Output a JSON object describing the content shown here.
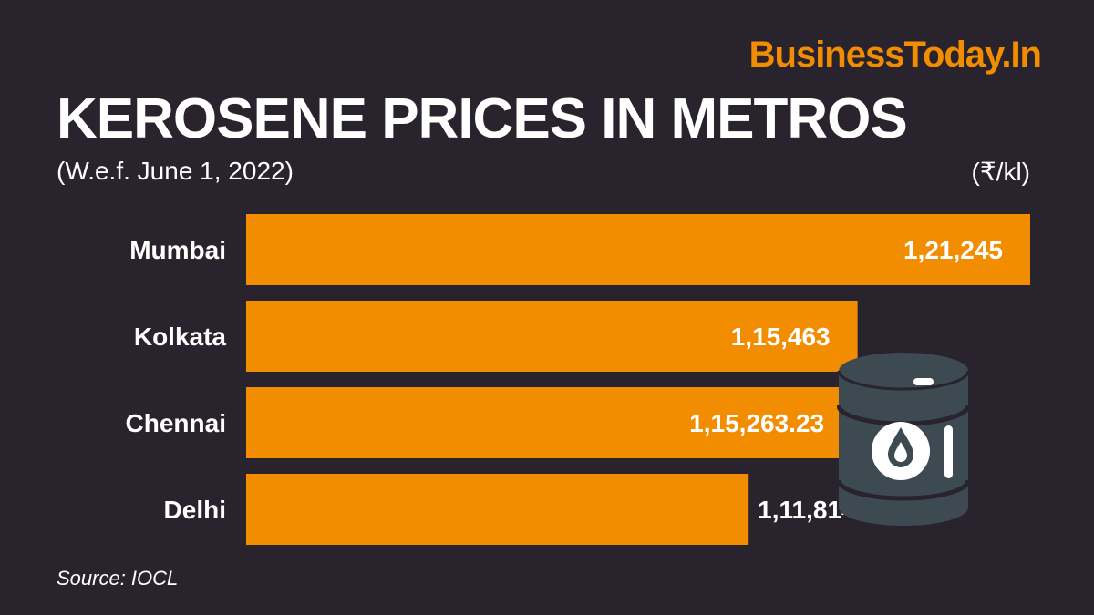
{
  "brand": "BusinessToday.In",
  "source": "Source: IOCL",
  "colors": {
    "background": "#29232d",
    "bar": "#f28c00",
    "text": "#ffffff",
    "brand": "#f28c00",
    "barrel": "#3d4a52"
  },
  "icons": {
    "decoration": "oil-barrel-icon"
  },
  "chart_data": {
    "type": "bar",
    "orientation": "horizontal",
    "title": "KEROSENE PRICES IN METROS",
    "subtitle": "(W.e.f. June 1, 2022)",
    "unit": "(₹/kl)",
    "categories": [
      "Mumbai",
      "Kolkata",
      "Chennai",
      "Delhi"
    ],
    "values": [
      121245,
      115463,
      115263.23,
      111814.23
    ],
    "value_labels": [
      "1,21,245",
      "1,15,463",
      "1,15,263.23",
      "1,11,814.23"
    ],
    "xlim": [
      105000,
      121245
    ],
    "grid": false,
    "legend": "none"
  }
}
